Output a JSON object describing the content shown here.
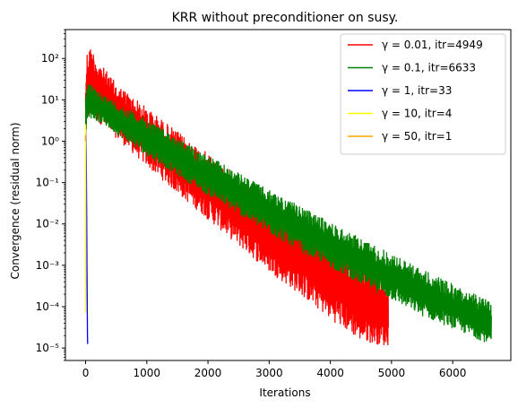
{
  "chart_data": {
    "type": "line",
    "title": "KRR without preconditioner on susy.",
    "xlabel": "Iterations",
    "ylabel": "Convergence (residual norm)",
    "xlim": [
      -330,
      6950
    ],
    "ylim": [
      5e-06,
      500
    ],
    "yscale": "log",
    "grid": false,
    "legend_position": "top-right",
    "x_ticks": [
      0,
      1000,
      2000,
      3000,
      4000,
      5000,
      6000
    ],
    "x_tick_labels": [
      "0",
      "1000",
      "2000",
      "3000",
      "4000",
      "5000",
      "6000"
    ],
    "y_ticks": [
      1e-05,
      0.0001,
      0.001,
      0.01,
      0.1,
      1,
      10,
      100
    ],
    "y_tick_labels": [
      "10⁻⁵",
      "10⁻⁴",
      "10⁻³",
      "10⁻²",
      "10⁻¹",
      "10⁰",
      "10¹",
      "10²"
    ],
    "series": [
      {
        "name": "γ = 0.01, itr=4949",
        "color": "#ff0000",
        "x": [
          0,
          20,
          50,
          100,
          200,
          500,
          1000,
          1500,
          2000,
          2500,
          3000,
          3500,
          4000,
          4500,
          4949
        ],
        "y_upper": [
          40,
          150,
          200,
          180,
          90,
          25,
          6.5,
          1.7,
          0.5,
          0.13,
          0.035,
          0.012,
          0.004,
          0.0015,
          0.0005
        ],
        "y_lower": [
          0.5,
          2,
          3,
          4,
          3,
          1.2,
          0.25,
          0.055,
          0.013,
          0.003,
          0.0007,
          0.0002,
          5e-05,
          1.5e-05,
          1.1e-05
        ]
      },
      {
        "name": "γ = 0.1, itr=6633",
        "color": "#008000",
        "x": [
          0,
          20,
          50,
          100,
          300,
          600,
          1000,
          1500,
          2000,
          2500,
          3000,
          3500,
          4000,
          4500,
          5000,
          5500,
          6000,
          6633
        ],
        "y_upper": [
          12,
          20,
          25,
          22,
          13,
          7,
          3.5,
          1.2,
          0.45,
          0.17,
          0.065,
          0.027,
          0.011,
          0.0045,
          0.0019,
          0.0008,
          0.00035,
          0.00013
        ],
        "y_lower": [
          1,
          3,
          4,
          3.5,
          2.5,
          1.2,
          0.45,
          0.15,
          0.05,
          0.017,
          0.006,
          0.0022,
          0.0009,
          0.00035,
          0.00015,
          6e-05,
          3e-05,
          1.2e-05
        ]
      },
      {
        "name": "γ = 1, itr=33",
        "color": "#0000ff",
        "x": [
          0,
          3,
          6,
          10,
          14,
          18,
          22,
          26,
          30,
          33
        ],
        "y": [
          1,
          2,
          1.4,
          0.5,
          0.08,
          0.01,
          0.0012,
          0.00015,
          2e-05,
          1.25e-05
        ]
      },
      {
        "name": "γ = 10, itr=4",
        "color": "#ffff00",
        "x": [
          0,
          1,
          2,
          3,
          4
        ],
        "y": [
          1,
          2.5,
          0.05,
          0.0005,
          7e-05
        ]
      },
      {
        "name": "γ = 50, itr=1",
        "color": "#ffa500",
        "x": [
          0,
          1
        ],
        "y": [
          1,
          1.4
        ]
      }
    ]
  }
}
